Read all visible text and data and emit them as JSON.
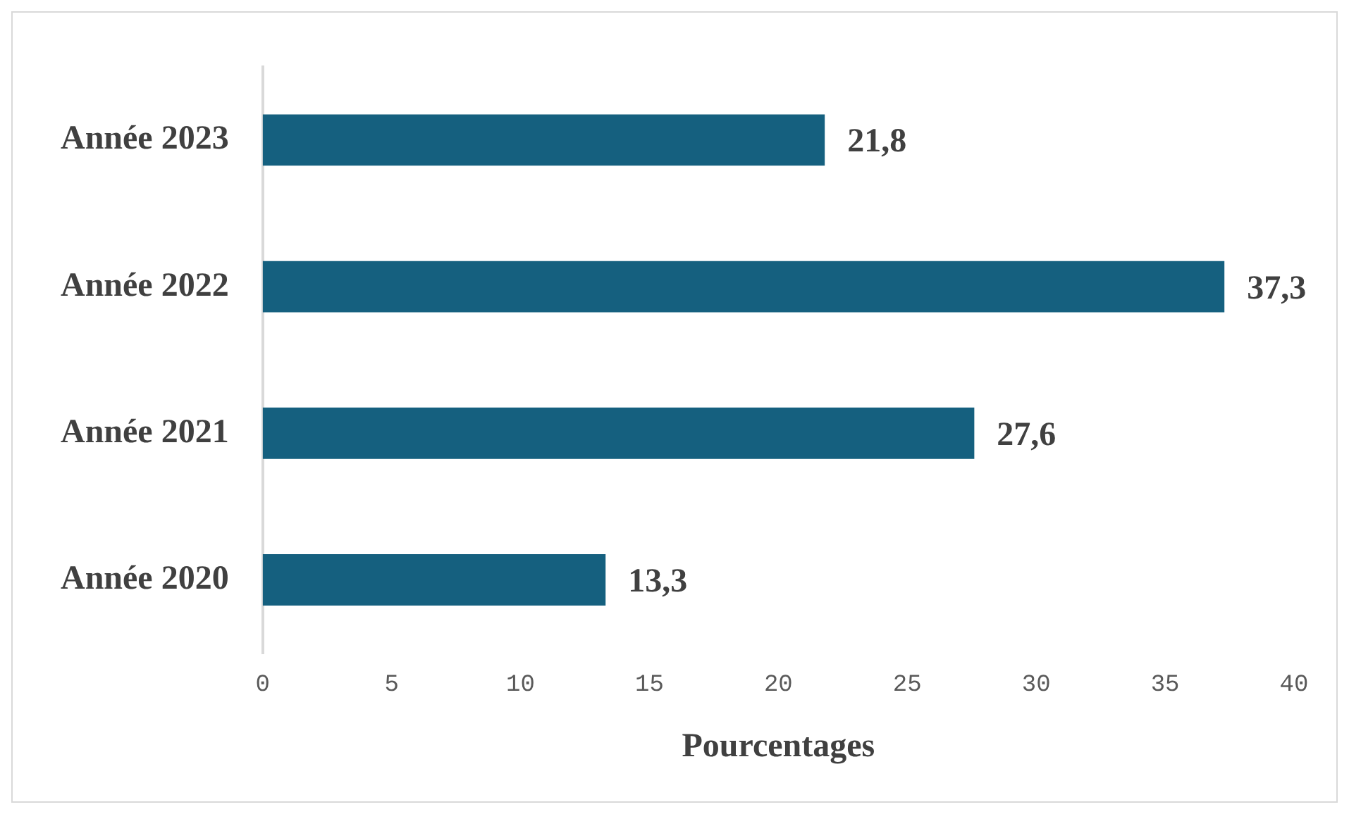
{
  "chart_data": {
    "type": "bar",
    "orientation": "horizontal",
    "xlabel": "Pourcentages",
    "categories": [
      "Année 2023",
      "Année 2022",
      "Année 2021",
      "Année 2020"
    ],
    "values": [
      21.8,
      37.3,
      27.6,
      13.3
    ],
    "value_labels": [
      "21,8",
      "37,3",
      "27,6",
      "13,3"
    ],
    "color": "#15607f",
    "xlim": [
      0,
      40
    ],
    "xticks": [
      0,
      5,
      10,
      15,
      20,
      25,
      30,
      35,
      40
    ],
    "legend": false
  }
}
